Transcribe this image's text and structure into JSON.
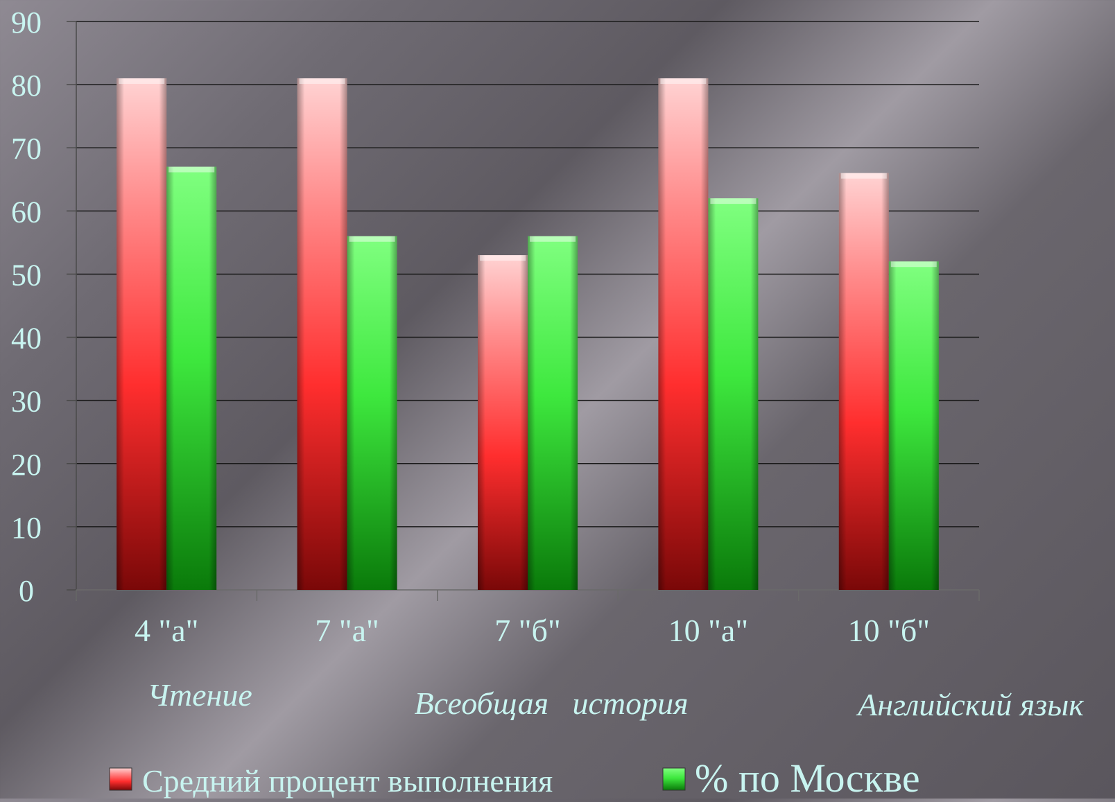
{
  "chart_data": {
    "type": "bar",
    "categories": [
      "4 \"а\"",
      "7 \"а\"",
      "7 \"б\"",
      "10 \"а\"",
      "10 \"б\""
    ],
    "series": [
      {
        "name": "Средний процент выполнения",
        "values": [
          81,
          81,
          53,
          81,
          66
        ],
        "color": "#e8282a"
      },
      {
        "name": "% по Москве",
        "values": [
          67,
          56,
          56,
          62,
          52
        ],
        "color": "#2ed62e"
      }
    ],
    "ylim": [
      0,
      90
    ],
    "yticks": [
      "0",
      "10",
      "20",
      "30",
      "40",
      "50",
      "60",
      "70",
      "80",
      "90"
    ],
    "grid": true,
    "subject_labels": [
      "Чтение",
      "Всеобщая   история",
      "Английский язык"
    ],
    "legend_position": "bottom",
    "text_color": "#c8f4f0"
  }
}
